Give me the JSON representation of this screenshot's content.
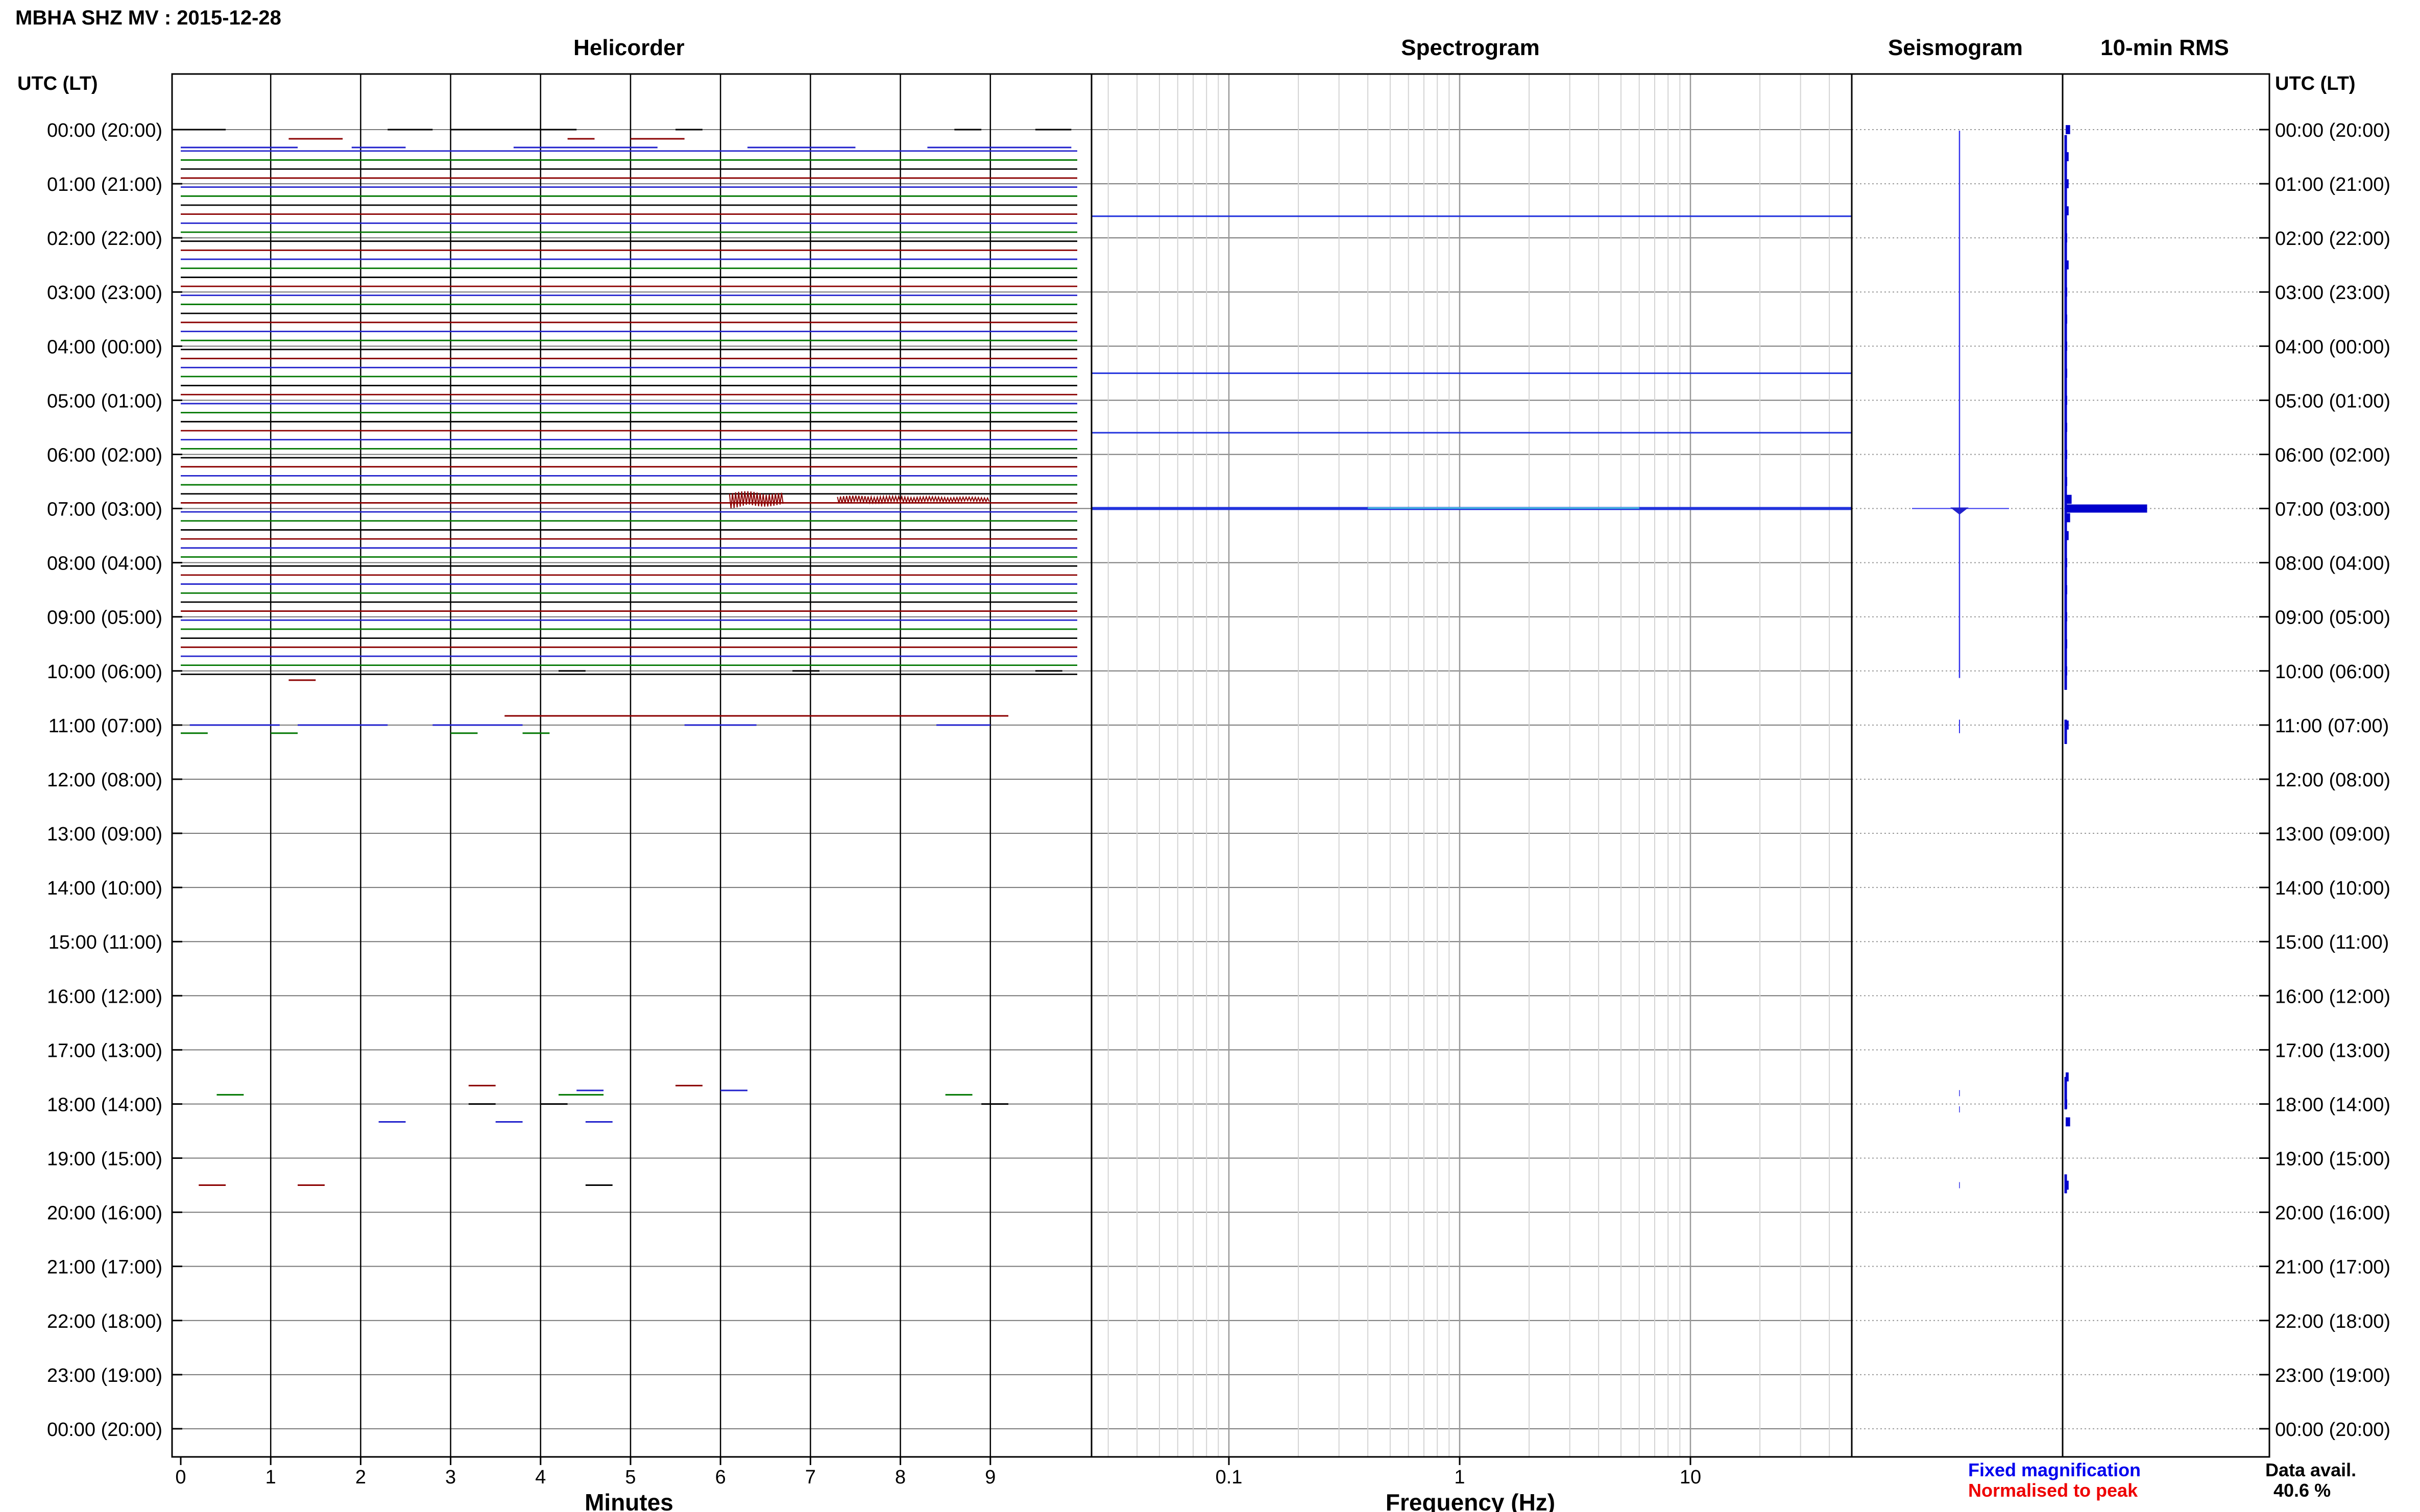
{
  "title": "MBHA SHZ MV : 2015-12-28",
  "panels": {
    "helicorder": "Helicorder",
    "spectrogram": "Spectrogram",
    "seismogram": "Seismogram",
    "rms": "10-min RMS"
  },
  "axis_header_left": "UTC (LT)",
  "axis_header_right": "UTC (LT)",
  "time_labels": [
    "00:00 (20:00)",
    "01:00 (21:00)",
    "02:00 (22:00)",
    "03:00 (23:00)",
    "04:00 (00:00)",
    "05:00 (01:00)",
    "06:00 (02:00)",
    "07:00 (03:00)",
    "08:00 (04:00)",
    "09:00 (05:00)",
    "10:00 (06:00)",
    "11:00 (07:00)",
    "12:00 (08:00)",
    "13:00 (09:00)",
    "14:00 (10:00)",
    "15:00 (11:00)",
    "16:00 (12:00)",
    "17:00 (13:00)",
    "18:00 (14:00)",
    "19:00 (15:00)",
    "20:00 (16:00)",
    "21:00 (17:00)",
    "22:00 (18:00)",
    "23:00 (19:00)",
    "00:00 (20:00)"
  ],
  "minutes_xlabel": "Minutes",
  "minute_ticks": [
    "0",
    "1",
    "2",
    "3",
    "4",
    "5",
    "6",
    "7",
    "8",
    "9"
  ],
  "freq_xlabel": "Frequency (Hz)",
  "freq_ticks": [
    "0.1",
    "1",
    "10"
  ],
  "legend": {
    "fixed": "Fixed magnification",
    "normalised": "Normalised to peak",
    "fixed_color": "#0000ee",
    "normalised_color": "#ee0000"
  },
  "data_avail_label": "Data avail.",
  "data_avail_value": "40.6 %",
  "colors": {
    "trace_black": "#000000",
    "trace_red": "#8b0000",
    "trace_blue": "#2222cc",
    "trace_green": "#007700",
    "spectro": "#2233dd",
    "rms": "#0000cc"
  },
  "chart_data": [
    {
      "type": "line",
      "name": "Helicorder",
      "xlabel": "Minutes",
      "xlim": [
        0,
        10
      ],
      "continuous_data_hours": [
        0.4,
        10.0
      ],
      "event_hour": 7.0,
      "event_minutes": [
        [
          6.1,
          6.7
        ],
        [
          7.3,
          9.0
        ]
      ]
    },
    {
      "type": "heatmap",
      "name": "Spectrogram",
      "xlabel": "Frequency (Hz)",
      "xscale": "log",
      "xlim": [
        0.03,
        50
      ],
      "bands_hours": [
        1.6,
        4.5,
        5.6,
        7.0
      ]
    },
    {
      "type": "bar",
      "name": "10-min RMS",
      "hours": [
        0.0,
        0.5,
        1.0,
        1.5,
        2.0,
        2.5,
        3.0,
        3.5,
        4.0,
        4.5,
        5.0,
        5.5,
        6.0,
        6.5,
        6.83,
        7.0,
        7.17,
        7.5,
        8.0,
        8.5,
        9.0,
        9.5,
        10.0,
        11.0,
        17.5,
        18.0,
        18.33,
        19.5
      ],
      "values": [
        3,
        2,
        2,
        2,
        1,
        2,
        1,
        1,
        1,
        1,
        1,
        1,
        1,
        1,
        4,
        55,
        3,
        2,
        1,
        1,
        1,
        1,
        1,
        2,
        2,
        1,
        3,
        2
      ]
    }
  ]
}
